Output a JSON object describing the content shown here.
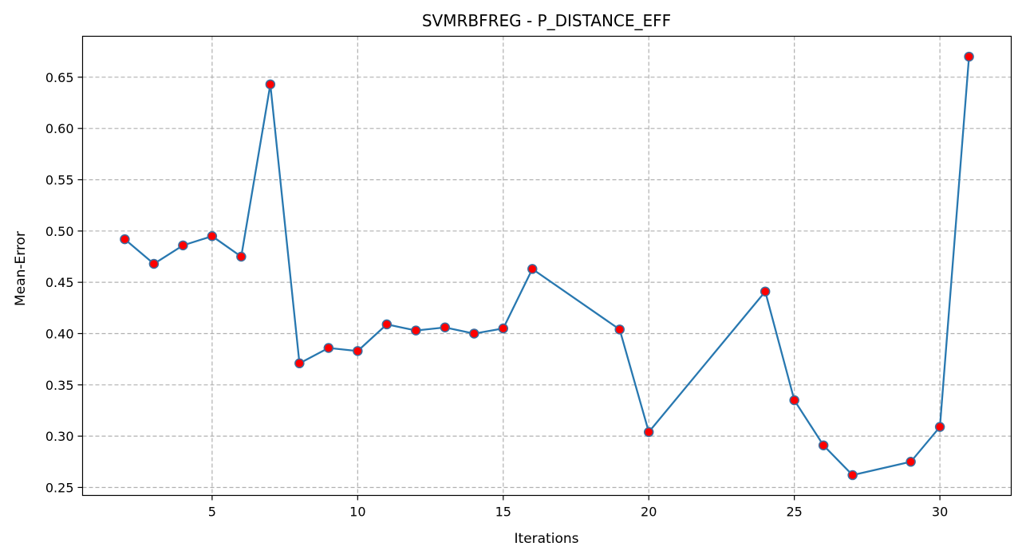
{
  "chart_data": {
    "type": "line",
    "title": "SVMRBFREG - P_DISTANCE_EFF",
    "xlabel": "Iterations",
    "ylabel": "Mean-Error",
    "xlim": [
      0.55,
      32.45
    ],
    "ylim": [
      0.2422,
      0.6899
    ],
    "xticks": [
      5,
      10,
      15,
      20,
      25,
      30
    ],
    "yticks": [
      0.25,
      0.3,
      0.35,
      0.4,
      0.45,
      0.5,
      0.55,
      0.6,
      0.65
    ],
    "ytick_labels": [
      "0.25",
      "0.30",
      "0.35",
      "0.40",
      "0.45",
      "0.50",
      "0.55",
      "0.60",
      "0.65"
    ],
    "grid": true,
    "series": [
      {
        "x": [
          2,
          3,
          4,
          5,
          6,
          7,
          8,
          9,
          10,
          11,
          12,
          13,
          14,
          15,
          16,
          19,
          20,
          24,
          25,
          26,
          27,
          29,
          30,
          31
        ],
        "y": [
          0.492,
          0.468,
          0.486,
          0.495,
          0.475,
          0.643,
          0.371,
          0.386,
          0.383,
          0.409,
          0.403,
          0.406,
          0.4,
          0.405,
          0.463,
          0.404,
          0.304,
          0.441,
          0.335,
          0.291,
          0.262,
          0.275,
          0.309,
          0.67
        ],
        "line_color": "#2878b0",
        "marker_color": "#ff0000",
        "marker_edge_color": "#3b6fa0"
      }
    ]
  }
}
